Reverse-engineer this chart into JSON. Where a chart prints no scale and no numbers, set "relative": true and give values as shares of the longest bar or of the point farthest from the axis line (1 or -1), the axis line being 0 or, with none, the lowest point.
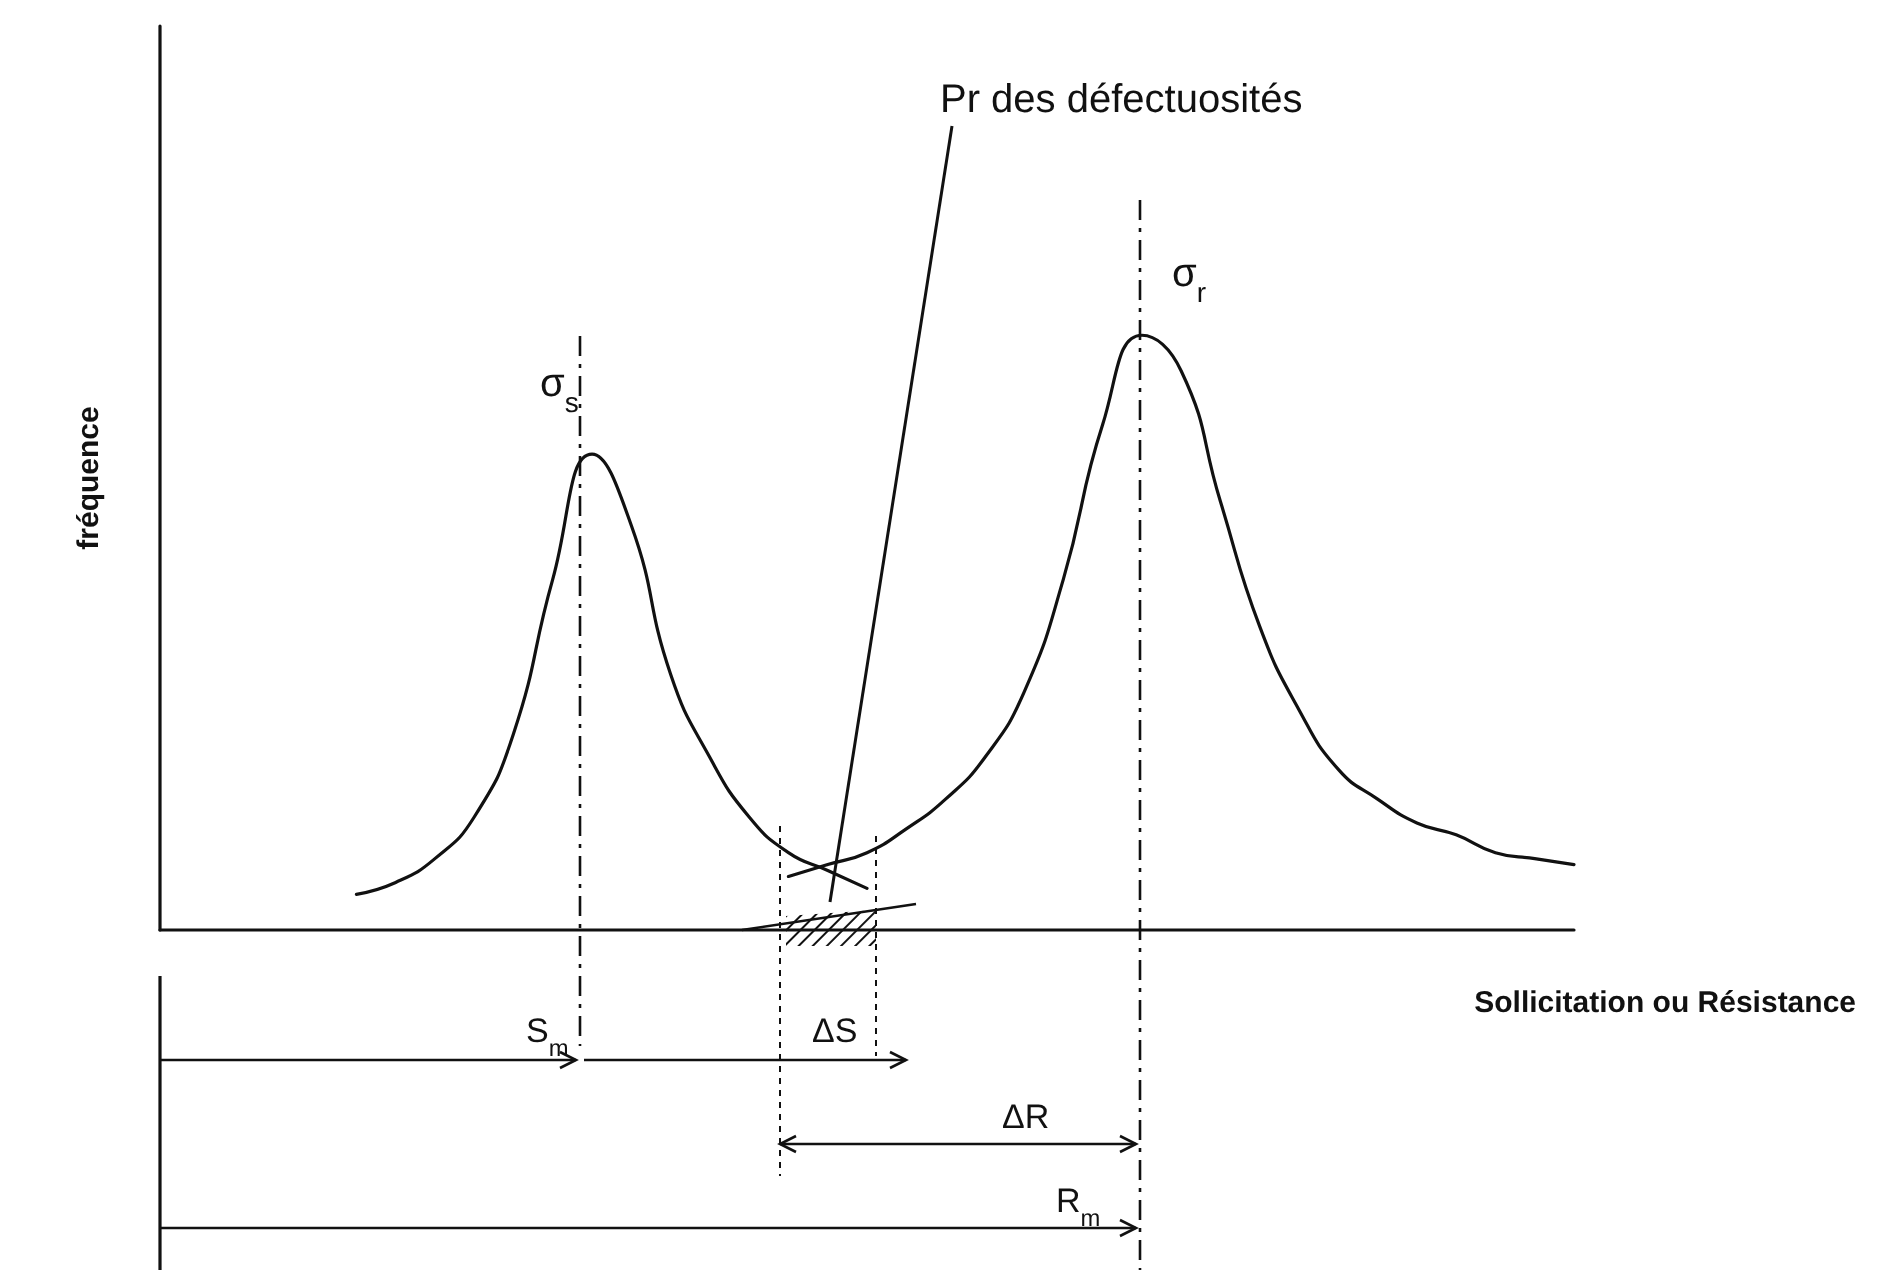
{
  "chart_data": {
    "type": "line",
    "relative": true,
    "xlabel": "Sollicitation ou Résistance",
    "ylabel": "fréquence",
    "categories": [
      null,
      null,
      null,
      null,
      null,
      null,
      null,
      null,
      null,
      null,
      null,
      null,
      null,
      null,
      null,
      null,
      null,
      null,
      null,
      null,
      null,
      null,
      null,
      null,
      null,
      null,
      null,
      null,
      null,
      null,
      null,
      null,
      null,
      null,
      null,
      null,
      null
    ],
    "series": [
      {
        "color": "#111111",
        "values": [
          null,
          null,
          null,
          null,
          null,
          0.06,
          0.08,
          0.12,
          0.19,
          0.33,
          0.59,
          0.8,
          0.68,
          0.43,
          0.29,
          0.19,
          0.13,
          0.1,
          0.07,
          null,
          null,
          null,
          null,
          null,
          null,
          null,
          null,
          null,
          null,
          null,
          null,
          null,
          null,
          null,
          null,
          null,
          null
        ]
      },
      {
        "color": "#111111",
        "values": [
          null,
          null,
          null,
          null,
          null,
          null,
          null,
          null,
          null,
          null,
          null,
          null,
          null,
          null,
          null,
          null,
          0.09,
          0.11,
          0.13,
          0.17,
          0.22,
          0.29,
          0.4,
          0.59,
          0.85,
          1.0,
          0.94,
          0.72,
          0.51,
          0.37,
          0.27,
          0.22,
          0.18,
          0.16,
          0.13,
          0.12,
          0.11
        ]
      }
    ],
    "annotations": [
      "Pr des défectuosités",
      "σ$_{s}$",
      "σ$_{r}$",
      "S$_{m}$",
      "ΔS",
      "ΔR",
      "R$_{m}$"
    ],
    "marker": "none",
    "line_style": "solid",
    "grid": false
  }
}
